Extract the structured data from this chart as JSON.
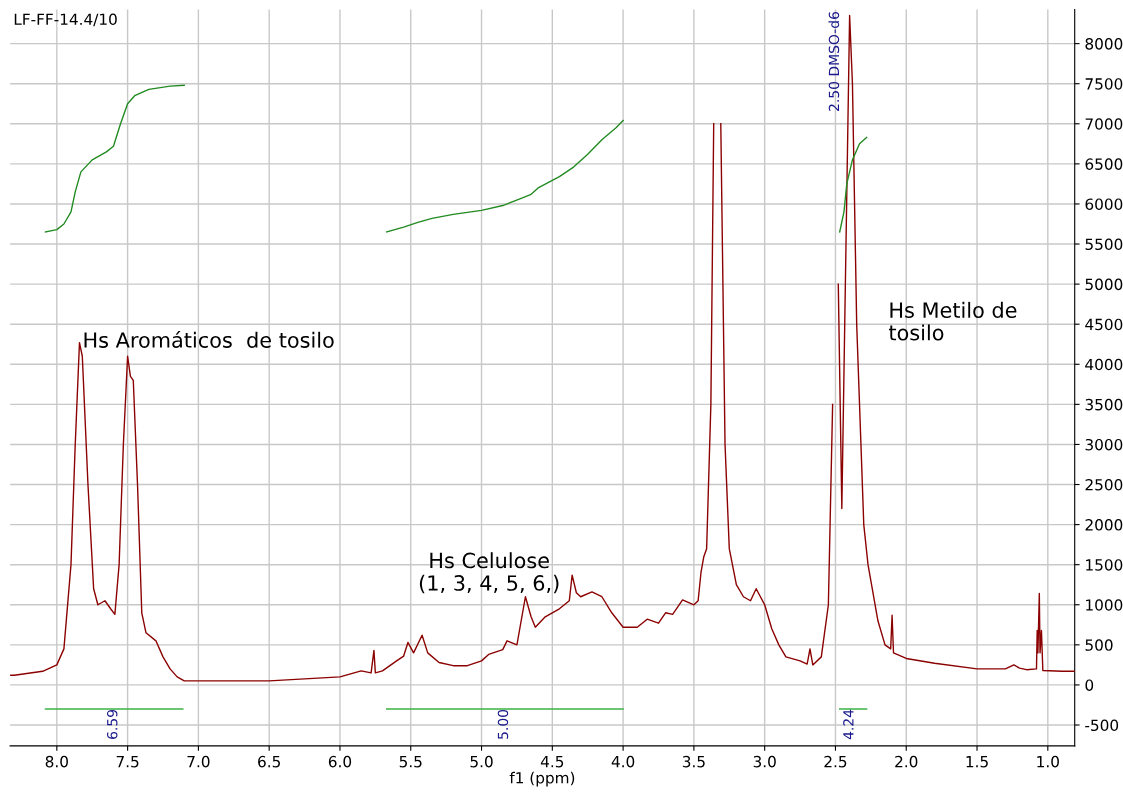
{
  "chart_data": {
    "type": "line",
    "title": "LF-FF-14.4/10",
    "xlabel": "f1 (ppm)",
    "xlim": [
      8.33,
      0.81
    ],
    "ylim": [
      -760,
      8425
    ],
    "xticks": [
      {
        "value": 8,
        "label": "8.0"
      },
      7.5,
      {
        "value": 7,
        "label": "7.0"
      },
      6.5,
      {
        "value": 6,
        "label": "6.0"
      },
      5.5,
      {
        "value": 5,
        "label": "5.0"
      },
      4.5,
      {
        "value": 4,
        "label": "4.0"
      },
      3.5,
      {
        "value": 3,
        "label": "3.0"
      },
      2.5,
      {
        "value": 2,
        "label": "2.0"
      },
      1.5,
      {
        "value": 1,
        "label": "1.0"
      }
    ],
    "yticks": [
      -500,
      0,
      500,
      1000,
      1500,
      2000,
      2500,
      3000,
      3500,
      4000,
      4500,
      5000,
      5500,
      6000,
      6500,
      7000,
      7500,
      8000
    ],
    "grid": true,
    "legend": false,
    "marker": "none",
    "line_style": "solid",
    "series": [
      {
        "color": "#8b0000",
        "x": [
          8.33,
          8.3,
          8.1,
          8.0,
          7.95,
          7.9,
          7.87,
          7.84,
          7.82,
          7.78,
          7.74,
          7.71,
          7.66,
          7.62,
          7.59,
          7.56,
          7.53,
          7.5,
          7.48,
          7.46,
          7.43,
          7.4,
          7.37,
          7.3,
          7.25,
          7.2,
          7.15,
          7.1,
          7.0,
          6.5,
          6.0,
          5.9,
          5.85,
          5.78,
          5.76,
          5.75,
          5.7,
          5.6,
          5.55,
          5.52,
          5.48,
          5.42,
          5.38,
          5.3,
          5.2,
          5.1,
          5.0,
          4.95,
          4.85,
          4.82,
          4.75,
          4.69,
          4.65,
          4.62,
          4.55,
          4.45,
          4.38,
          4.36,
          4.33,
          4.3,
          4.22,
          4.15,
          4.08,
          4.0,
          3.9,
          3.83,
          3.75,
          3.7,
          3.65,
          3.58,
          3.5,
          3.47,
          3.45,
          3.43,
          3.41,
          3.38,
          3.36,
          3.35,
          3.32,
          3.31,
          3.28,
          3.25,
          3.2,
          3.15,
          3.1,
          3.06,
          3.0,
          2.95,
          2.9,
          2.85,
          2.75,
          2.7,
          2.68,
          2.66,
          2.6,
          2.55,
          2.52,
          2.505,
          2.495,
          2.48,
          2.455,
          2.43,
          2.4,
          2.38,
          2.35,
          2.3,
          2.27,
          2.2,
          2.15,
          2.11,
          2.1,
          2.09,
          2.0,
          1.8,
          1.5,
          1.3,
          1.24,
          1.2,
          1.15,
          1.08,
          1.075,
          1.07,
          1.06,
          1.055,
          1.045,
          1.035,
          0.9,
          0.81
        ],
        "values": [
          120,
          120,
          170,
          250,
          450,
          1500,
          3000,
          4270,
          4100,
          2500,
          1200,
          1000,
          1050,
          950,
          880,
          1500,
          3000,
          4100,
          3850,
          3800,
          2500,
          900,
          650,
          550,
          350,
          200,
          100,
          50,
          50,
          50,
          100,
          150,
          175,
          150,
          430,
          150,
          175,
          300,
          360,
          530,
          400,
          620,
          400,
          280,
          240,
          240,
          300,
          380,
          440,
          550,
          500,
          1100,
          850,
          720,
          850,
          950,
          1050,
          1370,
          1150,
          1100,
          1160,
          1100,
          900,
          720,
          720,
          820,
          770,
          900,
          880,
          1060,
          1000,
          1050,
          1400,
          1600,
          1700,
          3500,
          7000,
          null,
          null,
          7000,
          3000,
          1700,
          1250,
          1100,
          1050,
          1200,
          1000,
          700,
          500,
          350,
          300,
          260,
          450,
          250,
          350,
          1000,
          3500,
          null,
          null,
          5000,
          2200,
          5000,
          8350,
          7500,
          4500,
          2000,
          1500,
          800,
          500,
          450,
          870,
          400,
          330,
          270,
          200,
          200,
          250,
          210,
          190,
          200,
          680,
          400,
          1140,
          400,
          680,
          180,
          170,
          170
        ]
      },
      {
        "color": "#228b22",
        "x": [
          8.08,
          8.0,
          7.95,
          7.9,
          7.87,
          7.83,
          7.75,
          7.65,
          7.6,
          7.55,
          7.5,
          7.45,
          7.35,
          7.2,
          7.1
        ],
        "values": [
          5650,
          5680,
          5750,
          5900,
          6150,
          6400,
          6550,
          6650,
          6720,
          7000,
          7250,
          7350,
          7430,
          7470,
          7480
        ]
      },
      {
        "color": "#228b22",
        "x": [
          5.67,
          5.55,
          5.45,
          5.35,
          5.2,
          5.0,
          4.85,
          4.72,
          4.65,
          4.6,
          4.45,
          4.35,
          4.25,
          4.15,
          4.05,
          4.0
        ],
        "values": [
          5650,
          5710,
          5770,
          5820,
          5870,
          5920,
          5980,
          6070,
          6120,
          6200,
          6340,
          6460,
          6620,
          6800,
          6950,
          7040
        ]
      },
      {
        "color": "#228b22",
        "x": [
          2.47,
          2.44,
          2.42,
          2.38,
          2.33,
          2.28
        ],
        "values": [
          5650,
          5900,
          6250,
          6550,
          6750,
          6830
        ]
      },
      {
        "color": "#3cb043",
        "x": [
          8.08,
          7.11
        ],
        "values": [
          -300,
          -300
        ]
      },
      {
        "color": "#3cb043",
        "x": [
          5.67,
          4.0
        ],
        "values": [
          -300,
          -300
        ]
      },
      {
        "color": "#3cb043",
        "x": [
          2.47,
          2.28
        ],
        "values": [
          -300,
          -300
        ]
      }
    ],
    "annotations": [
      "Hs Aromáticos  de tosilo",
      "Hs Celulose\n(1, 3, 4, 5, 6,)",
      "Hs Metilo de\ntosilo",
      {
        "text": "6.59",
        "x": 7.6,
        "y": -300
      },
      {
        "text": "5.00",
        "x": 4.84,
        "y": -300
      },
      {
        "text": "4.24",
        "x": 2.4,
        "y": -300
      },
      "2.50 DMSO-d6"
    ]
  }
}
